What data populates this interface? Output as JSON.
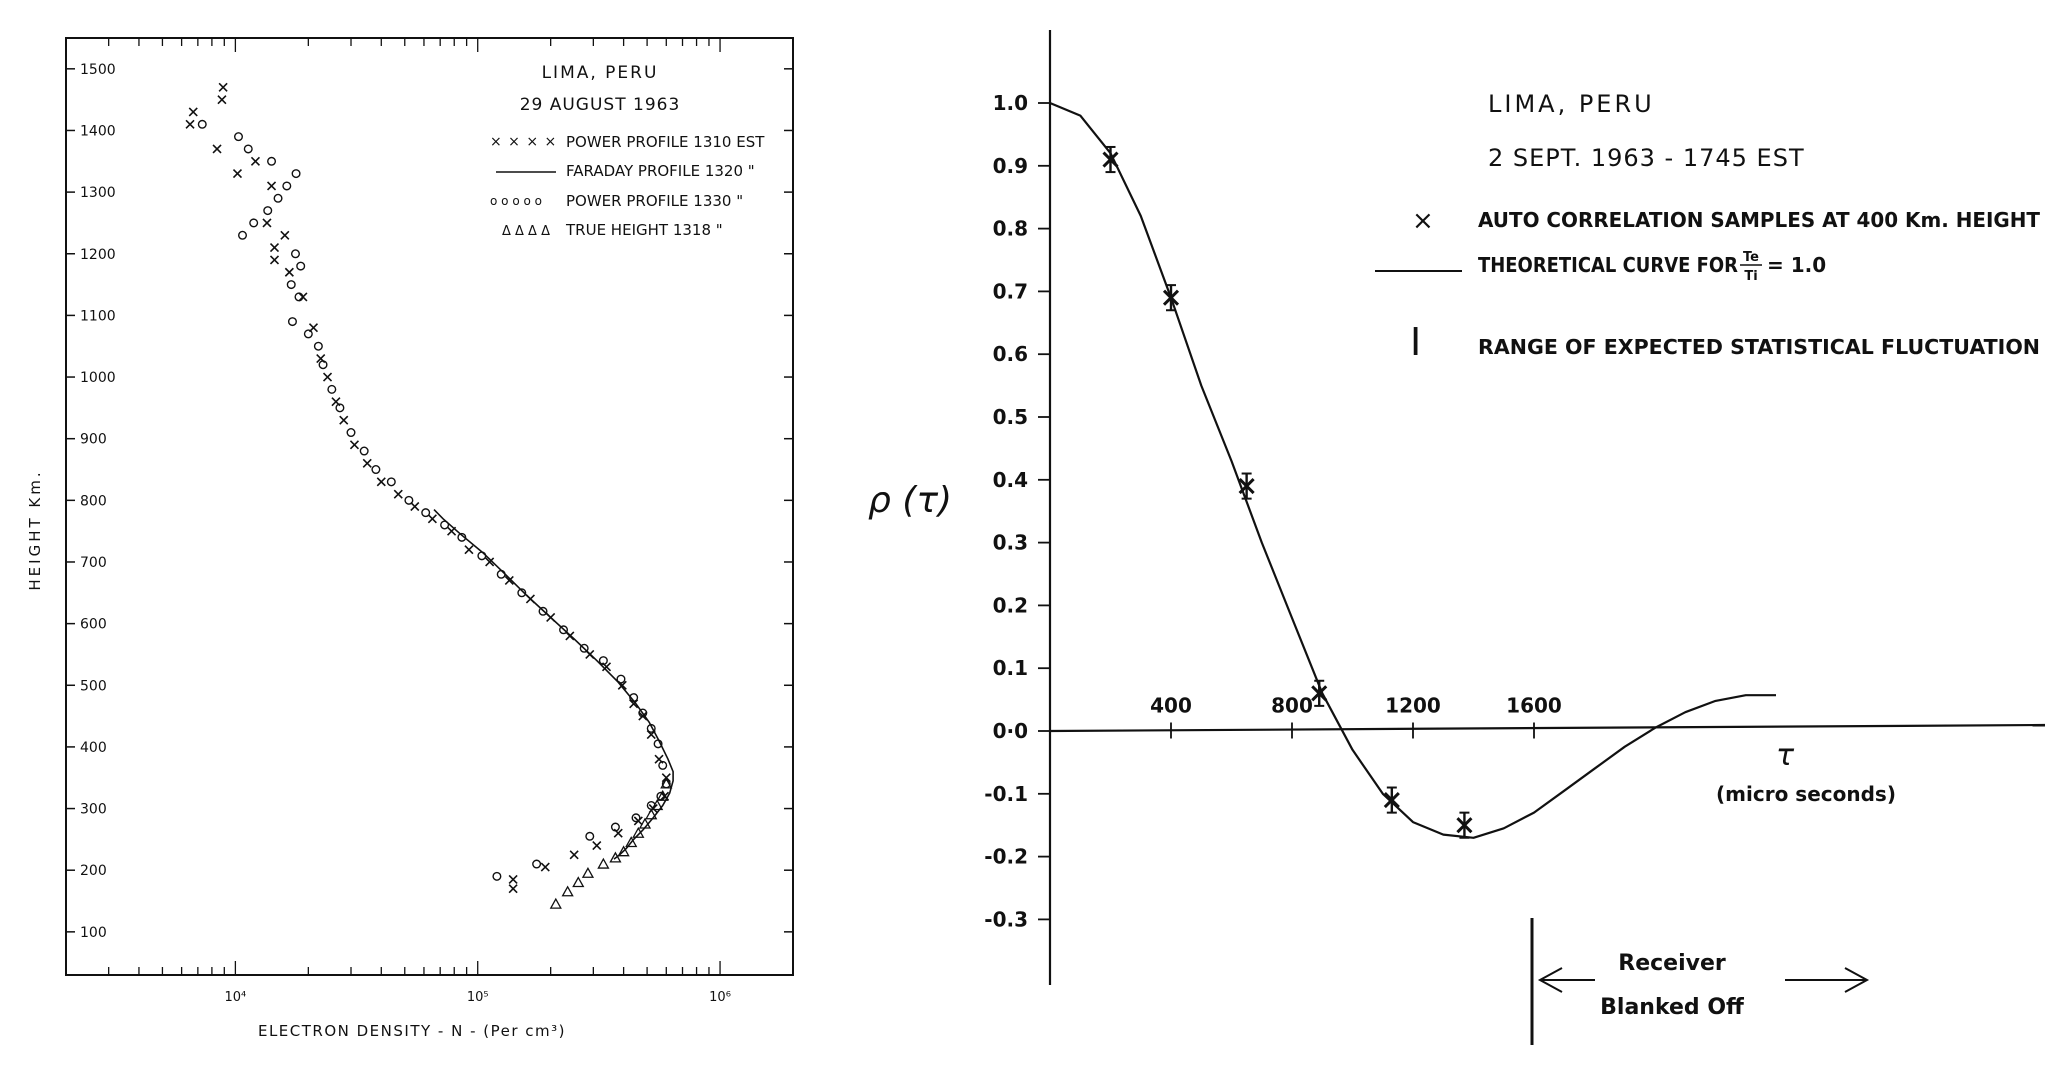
{
  "chart_data": [
    {
      "type": "scatter",
      "title": "LIMA, PERU",
      "subtitle": "29 AUGUST 1963",
      "xlabel": "ELECTRON DENSITY - N - (Per cm³)",
      "ylabel": "HEIGHT Km.",
      "xscale": "log",
      "xlim": [
        2000,
        2000000
      ],
      "ylim": [
        30,
        1550
      ],
      "xticks": [
        10000,
        100000,
        1000000
      ],
      "xtick_labels": [
        "10⁴",
        "10⁵",
        "10⁶"
      ],
      "yticks": [
        100,
        200,
        300,
        400,
        500,
        600,
        700,
        800,
        900,
        1000,
        1100,
        1200,
        1300,
        1400,
        1500
      ],
      "ytick_labels": [
        "100",
        "200",
        "300",
        "400",
        "500",
        "600",
        "700",
        "800",
        "900",
        "1000",
        "1100",
        "1200",
        "1300",
        "1400",
        "1500"
      ],
      "legend_position": "top-right",
      "series": [
        {
          "name": "POWER PROFILE 1310 EST",
          "legend_symbol": "× × × ×",
          "marker": "x",
          "points": [
            [
              8900,
              1470
            ],
            [
              6700,
              1430
            ],
            [
              8800,
              1450
            ],
            [
              6500,
              1410
            ],
            [
              8400,
              1370
            ],
            [
              10200,
              1330
            ],
            [
              12100,
              1350
            ],
            [
              14100,
              1310
            ],
            [
              13500,
              1250
            ],
            [
              16000,
              1230
            ],
            [
              14500,
              1210
            ],
            [
              14500,
              1190
            ],
            [
              16700,
              1170
            ],
            [
              19000,
              1130
            ],
            [
              21000,
              1080
            ],
            [
              22500,
              1030
            ],
            [
              24000,
              1000
            ],
            [
              26000,
              960
            ],
            [
              28000,
              930
            ],
            [
              31000,
              890
            ],
            [
              35000,
              860
            ],
            [
              40000,
              830
            ],
            [
              47000,
              810
            ],
            [
              55000,
              790
            ],
            [
              65000,
              770
            ],
            [
              78000,
              750
            ],
            [
              92000,
              720
            ],
            [
              112000,
              700
            ],
            [
              135000,
              670
            ],
            [
              165000,
              640
            ],
            [
              200000,
              610
            ],
            [
              240000,
              580
            ],
            [
              290000,
              550
            ],
            [
              340000,
              530
            ],
            [
              395000,
              500
            ],
            [
              440000,
              470
            ],
            [
              480000,
              450
            ],
            [
              520000,
              420
            ],
            [
              560000,
              380
            ],
            [
              600000,
              350
            ],
            [
              590000,
              320
            ],
            [
              530000,
              300
            ],
            [
              460000,
              280
            ],
            [
              380000,
              260
            ],
            [
              310000,
              240
            ],
            [
              250000,
              225
            ],
            [
              190000,
              205
            ],
            [
              140000,
              185
            ],
            [
              140000,
              170
            ]
          ]
        },
        {
          "name": "FARADAY PROFILE 1320 \"",
          "marker": "line",
          "points": [
            [
              66000,
              785
            ],
            [
              72000,
              770
            ],
            [
              85000,
              745
            ],
            [
              105000,
              715
            ],
            [
              130000,
              680
            ],
            [
              160000,
              645
            ],
            [
              200000,
              610
            ],
            [
              250000,
              575
            ],
            [
              310000,
              540
            ],
            [
              380000,
              505
            ],
            [
              450000,
              470
            ],
            [
              510000,
              440
            ],
            [
              560000,
              410
            ],
            [
              610000,
              380
            ],
            [
              640000,
              360
            ],
            [
              640000,
              345
            ],
            [
              620000,
              325
            ],
            [
              580000,
              305
            ],
            [
              530000,
              285
            ],
            [
              480000,
              265
            ],
            [
              440000,
              250
            ],
            [
              410000,
              235
            ],
            [
              385000,
              225
            ],
            [
              365000,
              218
            ]
          ]
        },
        {
          "name": "POWER PROFILE 1330 \"",
          "legend_symbol": "o o o o o",
          "marker": "circle",
          "points": [
            [
              7300,
              1410
            ],
            [
              10300,
              1390
            ],
            [
              11300,
              1370
            ],
            [
              14100,
              1350
            ],
            [
              17800,
              1330
            ],
            [
              16300,
              1310
            ],
            [
              15000,
              1290
            ],
            [
              13600,
              1270
            ],
            [
              11900,
              1250
            ],
            [
              10700,
              1230
            ],
            [
              17700,
              1200
            ],
            [
              18600,
              1180
            ],
            [
              17000,
              1150
            ],
            [
              18300,
              1130
            ],
            [
              17200,
              1090
            ],
            [
              20000,
              1070
            ],
            [
              22000,
              1050
            ],
            [
              23000,
              1020
            ],
            [
              25000,
              980
            ],
            [
              27000,
              950
            ],
            [
              30000,
              910
            ],
            [
              34000,
              880
            ],
            [
              38000,
              850
            ],
            [
              44000,
              830
            ],
            [
              52000,
              800
            ],
            [
              61000,
              780
            ],
            [
              73000,
              760
            ],
            [
              86000,
              740
            ],
            [
              104000,
              710
            ],
            [
              125000,
              680
            ],
            [
              152000,
              650
            ],
            [
              186000,
              620
            ],
            [
              226000,
              590
            ],
            [
              275000,
              560
            ],
            [
              330000,
              540
            ],
            [
              390000,
              510
            ],
            [
              440000,
              480
            ],
            [
              480000,
              455
            ],
            [
              520000,
              430
            ],
            [
              555000,
              405
            ],
            [
              580000,
              370
            ],
            [
              600000,
              340
            ],
            [
              570000,
              320
            ],
            [
              520000,
              305
            ],
            [
              450000,
              285
            ],
            [
              370000,
              270
            ],
            [
              290000,
              255
            ],
            [
              120000,
              190
            ],
            [
              175000,
              210
            ]
          ]
        },
        {
          "name": "TRUE HEIGHT 1318 \"",
          "legend_symbol": "Δ Δ Δ Δ",
          "marker": "triangle",
          "points": [
            [
              210000,
              145
            ],
            [
              235000,
              165
            ],
            [
              260000,
              180
            ],
            [
              285000,
              195
            ],
            [
              330000,
              210
            ],
            [
              370000,
              220
            ],
            [
              400000,
              230
            ],
            [
              430000,
              245
            ],
            [
              460000,
              260
            ],
            [
              490000,
              275
            ],
            [
              520000,
              290
            ],
            [
              550000,
              305
            ],
            [
              580000,
              320
            ],
            [
              600000,
              340
            ]
          ]
        }
      ]
    },
    {
      "type": "line",
      "title": "LIMA, PERU",
      "subtitle": "2 SEPT. 1963 - 1745 EST",
      "xlabel": "τ",
      "xlabel_units": "(micro seconds)",
      "ylabel": "ρ (τ)",
      "xlim": [
        0,
        3300
      ],
      "ylim": [
        -0.42,
        1.12
      ],
      "xticks": [
        400,
        800,
        1200,
        1600
      ],
      "xtick_labels": [
        "400",
        "800",
        "1200",
        "1600"
      ],
      "yticks": [
        1.0,
        0.9,
        0.8,
        0.7,
        0.6,
        0.5,
        0.4,
        0.3,
        0.2,
        0.1,
        0.0,
        -0.1,
        -0.2,
        -0.3
      ],
      "ytick_labels": [
        "1.0",
        "0.9",
        "0.8",
        "0.7",
        "0.6",
        "0.5",
        "0.4",
        "0.3",
        "0.2",
        "0.1",
        "0·0",
        "-0.1",
        "-0.2",
        "-0.3"
      ],
      "legend_position": "top-right",
      "legend": [
        {
          "symbol": "×",
          "label": "AUTO CORRELATION SAMPLES AT 400 Km. HEIGHT"
        },
        {
          "symbol": "line",
          "label_prefix": "THEORETICAL CURVE FOR",
          "frac_num": "Te",
          "frac_den": "Ti",
          "label_suffix": "= 1.0"
        },
        {
          "symbol": "I",
          "label": "RANGE OF EXPECTED STATISTICAL FLUCTUATION"
        }
      ],
      "series": [
        {
          "name": "AUTO CORRELATION SAMPLES AT 400 Km. HEIGHT",
          "marker": "x",
          "points": [
            {
              "x": 200,
              "y": 0.91,
              "err": 0.02
            },
            {
              "x": 400,
              "y": 0.69,
              "err": 0.02
            },
            {
              "x": 650,
              "y": 0.39,
              "err": 0.02
            },
            {
              "x": 890,
              "y": 0.06,
              "err": 0.02
            },
            {
              "x": 1130,
              "y": -0.11,
              "err": 0.02
            },
            {
              "x": 1370,
              "y": -0.15,
              "err": 0.02
            }
          ]
        },
        {
          "name": "THEORETICAL CURVE",
          "marker": "line",
          "points": [
            [
              0,
              1.0
            ],
            [
              100,
              0.98
            ],
            [
              200,
              0.92
            ],
            [
              300,
              0.82
            ],
            [
              400,
              0.69
            ],
            [
              500,
              0.55
            ],
            [
              600,
              0.43
            ],
            [
              700,
              0.3
            ],
            [
              800,
              0.18
            ],
            [
              900,
              0.06
            ],
            [
              1000,
              -0.03
            ],
            [
              1100,
              -0.1
            ],
            [
              1200,
              -0.145
            ],
            [
              1300,
              -0.165
            ],
            [
              1400,
              -0.17
            ],
            [
              1500,
              -0.155
            ],
            [
              1600,
              -0.13
            ],
            [
              1700,
              -0.095
            ],
            [
              1800,
              -0.06
            ],
            [
              1900,
              -0.025
            ],
            [
              2000,
              0.005
            ],
            [
              2100,
              0.03
            ],
            [
              2200,
              0.048
            ],
            [
              2300,
              0.057
            ],
            [
              2400,
              0.057
            ]
          ]
        }
      ],
      "annotations": {
        "receiver_line1": "Receiver",
        "receiver_line2": "Blanked Off"
      }
    }
  ]
}
